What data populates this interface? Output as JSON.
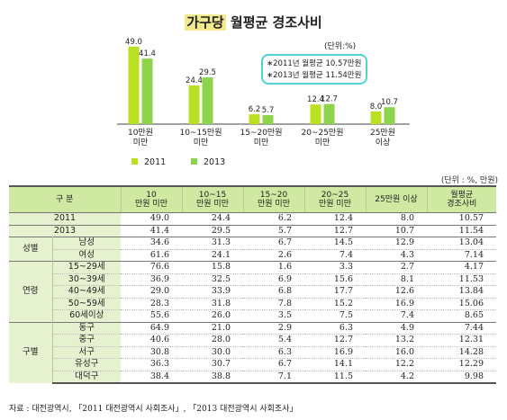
{
  "chart_data": {
    "type": "bar",
    "title_highlight": "가구당",
    "title_rest": " 월평균 경조사비",
    "unit": "(단위:%)",
    "categories": [
      "10만원\n미만",
      "10~15만원\n미만",
      "15~20만원\n미만",
      "20~25만원\n미만",
      "25만원\n이상"
    ],
    "series": [
      {
        "name": "2011",
        "values": [
          49.0,
          24.4,
          6.2,
          12.4,
          8.0
        ]
      },
      {
        "name": "2013",
        "values": [
          41.4,
          29.5,
          5.7,
          12.7,
          10.7
        ]
      }
    ],
    "value_labels": [
      [
        "49.0",
        "41.4"
      ],
      [
        "24.4",
        "29.5"
      ],
      [
        "6.2",
        "5.7"
      ],
      [
        "12.4",
        "12.7"
      ],
      [
        "8.0",
        "10.7"
      ]
    ],
    "ylim": [
      0,
      50
    ],
    "legend_position": "bottom-left",
    "colors": {
      "2011": "#b9e021",
      "2013": "#8ed44a"
    },
    "callout": [
      "∗2011년 월평균 10.57만원",
      "∗2013년 월평균 11.54만원"
    ],
    "callout_color": "#4fd3d8"
  },
  "table": {
    "unit": "(단위 : %, 만원)",
    "headers": [
      "구 분",
      "10\n만원 미만",
      "10~15\n만원 미만",
      "15~20\n만원 미만",
      "20~25\n만원 미만",
      "25만원 이상",
      "월평균\n경조사비"
    ],
    "rows": [
      {
        "group": "",
        "label": "2011",
        "values": [
          "49.0",
          "24.4",
          "6.2",
          "12.4",
          "8.0",
          "10.57"
        ]
      },
      {
        "group": "",
        "label": "2013",
        "values": [
          "41.4",
          "29.5",
          "5.7",
          "12.7",
          "10.7",
          "11.54"
        ]
      },
      {
        "group": "성별",
        "label": "남성",
        "values": [
          "34.6",
          "31.3",
          "6.7",
          "14.5",
          "12.9",
          "13.04"
        ]
      },
      {
        "group": "",
        "label": "여성",
        "values": [
          "61.6",
          "24.1",
          "2.6",
          "7.4",
          "4.3",
          "7.14"
        ]
      },
      {
        "group": "연령",
        "label": "15~29세",
        "values": [
          "76.6",
          "15.8",
          "1.6",
          "3.3",
          "2.7",
          "4.17"
        ]
      },
      {
        "group": "",
        "label": "30~39세",
        "values": [
          "36.9",
          "32.5",
          "6.9",
          "15.6",
          "8.1",
          "11.53"
        ]
      },
      {
        "group": "",
        "label": "40~49세",
        "values": [
          "29.0",
          "33.9",
          "6.8",
          "17.7",
          "12.6",
          "13.84"
        ]
      },
      {
        "group": "",
        "label": "50~59세",
        "values": [
          "28.3",
          "31.8",
          "7.8",
          "15.2",
          "16.9",
          "15.06"
        ]
      },
      {
        "group": "",
        "label": "60세이상",
        "values": [
          "55.6",
          "26.0",
          "3.5",
          "7.5",
          "7.4",
          "8.65"
        ]
      },
      {
        "group": "구별",
        "label": "동구",
        "values": [
          "64.9",
          "21.0",
          "2.9",
          "6.3",
          "4.9",
          "7.44"
        ]
      },
      {
        "group": "",
        "label": "중구",
        "values": [
          "40.6",
          "28.0",
          "5.4",
          "12.7",
          "13.2",
          "12.31"
        ]
      },
      {
        "group": "",
        "label": "서구",
        "values": [
          "30.8",
          "30.0",
          "6.3",
          "16.9",
          "16.0",
          "14.28"
        ]
      },
      {
        "group": "",
        "label": "유성구",
        "values": [
          "36.3",
          "30.7",
          "6.7",
          "14.1",
          "12.2",
          "12.29"
        ]
      },
      {
        "group": "",
        "label": "대덕구",
        "values": [
          "38.4",
          "38.8",
          "7.1",
          "11.5",
          "4.2",
          "9.98"
        ]
      }
    ]
  },
  "source": "자료 : 대전광역시, 「2011 대전광역시 사회조사」, 「2013 대전광역시 사회조사」"
}
